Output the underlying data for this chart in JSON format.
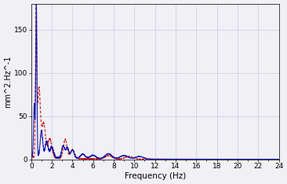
{
  "title": "",
  "xlabel": "Frequency (Hz)",
  "ylabel": "mm^2.Hz^-1",
  "xlim": [
    0,
    24
  ],
  "ylim": [
    0,
    180
  ],
  "yticks": [
    0,
    50,
    100,
    150
  ],
  "xticks": [
    0,
    2,
    4,
    6,
    8,
    10,
    12,
    14,
    16,
    18,
    20,
    22,
    24
  ],
  "line1_color": "#1a1aaa",
  "line2_color": "#cc1111",
  "background_color": "#f0f0f5",
  "grid_color": "#ccccdd"
}
